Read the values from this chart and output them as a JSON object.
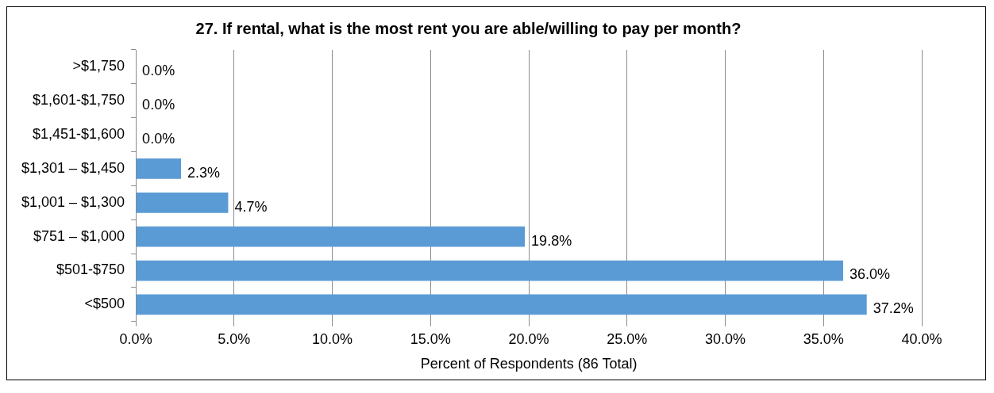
{
  "chart_data": {
    "type": "bar",
    "orientation": "horizontal",
    "title": "27. If rental, what is the most rent you are able/willing to pay per month?",
    "xlabel": "Percent of Respondents (86 Total)",
    "categories": [
      ">$1,750",
      "$1,601-$1,750",
      "$1,451-$1,600",
      "$1,301 – $1,450",
      "$1,001 – $1,300",
      "$751 – $1,000",
      "$501-$750",
      "<$500"
    ],
    "values": [
      0,
      0,
      0,
      2.3,
      4.7,
      19.8,
      36.0,
      37.2
    ],
    "value_labels": [
      "0.0%",
      "0.0%",
      "0.0%",
      "2.3%",
      "4.7%",
      "19.8%",
      "36.0%",
      "37.2%"
    ],
    "color": "#5b9bd5",
    "xlim": [
      0,
      40
    ],
    "xticks": [
      {
        "value": 0,
        "label": "0.0%"
      },
      {
        "value": 5,
        "label": "5.0%"
      },
      {
        "value": 10,
        "label": "10.0%"
      },
      {
        "value": 15,
        "label": "15.0%"
      },
      {
        "value": 20,
        "label": "20.0%"
      },
      {
        "value": 25,
        "label": "25.0%"
      },
      {
        "value": 30,
        "label": "30.0%"
      },
      {
        "value": 35,
        "label": "35.0%"
      },
      {
        "value": 40,
        "label": "40.0%"
      }
    ],
    "grid": "x",
    "legend": false
  }
}
